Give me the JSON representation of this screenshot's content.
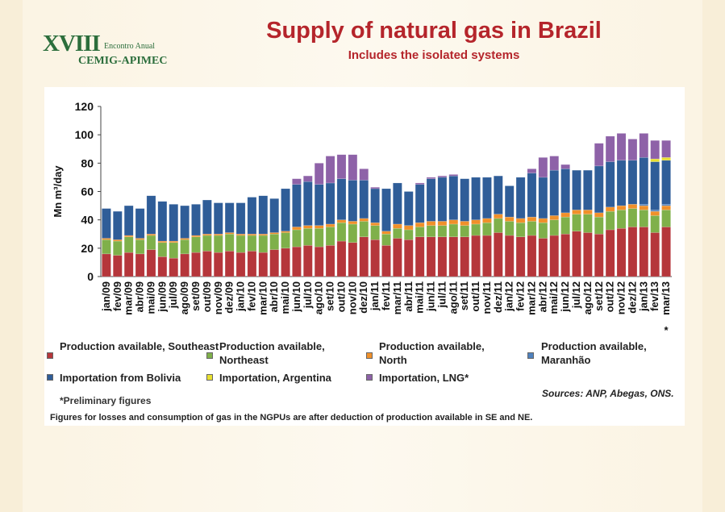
{
  "header": {
    "logo_numeral": "XVIII",
    "logo_event": "Encontro Anual",
    "logo_org": "CEMIG-APIMEC",
    "title": "Supply of natural gas in Brazil",
    "subtitle": "Includes the isolated systems"
  },
  "chart_data": {
    "type": "bar",
    "stacked": true,
    "ylabel": "Mn m³/day",
    "ylim": [
      0,
      120
    ],
    "yticks": [
      "0",
      "20",
      "40",
      "60",
      "80",
      "100",
      "120"
    ],
    "categories": [
      "jan/09",
      "fev/09",
      "mar/09",
      "abr/09",
      "mai/09",
      "jun/09",
      "jul/09",
      "ago/09",
      "set/09",
      "out/09",
      "nov/09",
      "dez/09",
      "jan/10",
      "fev/10",
      "mar/10",
      "abr/10",
      "mai/10",
      "jun/10",
      "jul/10",
      "ago/10",
      "set/10",
      "out/10",
      "nov/10",
      "dez/10",
      "jan/11",
      "fev/11",
      "mar/11",
      "abr/11",
      "mai/11",
      "jun/11",
      "jul/11",
      "ago/11",
      "set/11",
      "out/11",
      "nov/11",
      "dez/11",
      "jan/12",
      "fev/12",
      "mar/12",
      "abr/12",
      "mai/12",
      "jun/12",
      "jul/12",
      "ago/12",
      "set/12",
      "out/12",
      "nov/12",
      "dez/12",
      "jan/13",
      "fev/13",
      "mar/13"
    ],
    "marked_category_note": "*",
    "series": [
      {
        "name": "Production available, Southeast",
        "color": "#b5363b",
        "values": [
          16,
          15,
          17,
          16,
          19,
          14,
          13,
          16,
          17,
          18,
          17,
          18,
          17,
          18,
          17,
          19,
          20,
          21,
          22,
          21,
          22,
          25,
          24,
          28,
          26,
          22,
          27,
          26,
          28,
          28,
          28,
          28,
          28,
          29,
          29,
          31,
          29,
          28,
          29,
          27,
          29,
          30,
          32,
          31,
          30,
          33,
          34,
          35,
          35,
          31,
          35
        ]
      },
      {
        "name": "Production available, Northeast",
        "color": "#7fb04a",
        "values": [
          10,
          10,
          11,
          10,
          10,
          10,
          11,
          10,
          11,
          11,
          12,
          12,
          12,
          11,
          12,
          11,
          11,
          12,
          12,
          13,
          13,
          13,
          13,
          11,
          10,
          8,
          7,
          7,
          7,
          8,
          8,
          9,
          8,
          8,
          9,
          10,
          10,
          10,
          10,
          11,
          11,
          12,
          12,
          13,
          12,
          13,
          13,
          13,
          12,
          12,
          12
        ]
      },
      {
        "name": "Production available, North",
        "color": "#f0902a",
        "values": [
          1,
          1,
          1,
          1,
          1,
          1,
          1,
          1,
          1,
          1,
          1,
          1,
          1,
          1,
          1,
          1,
          1,
          2,
          2,
          2,
          2,
          2,
          2,
          2,
          2,
          2,
          3,
          3,
          3,
          3,
          3,
          3,
          3,
          3,
          3,
          3,
          3,
          3,
          3,
          3,
          3,
          3,
          3,
          3,
          3,
          3,
          3,
          3,
          3,
          3,
          3
        ]
      },
      {
        "name": "Production available, Maranhão",
        "color": "#4f81bd",
        "values": [
          0,
          0,
          0,
          0,
          0,
          0,
          0,
          0,
          0,
          0,
          0,
          0,
          0,
          0,
          0,
          0,
          0,
          0,
          0,
          0,
          0,
          0,
          0,
          0,
          0,
          0,
          0,
          0,
          0,
          0,
          0,
          0,
          0,
          0,
          0,
          0,
          0,
          0,
          0,
          0,
          0,
          0,
          0,
          0,
          0,
          0,
          0,
          0,
          1,
          1,
          1
        ]
      },
      {
        "name": "Importation from Bolivia",
        "color": "#2f5d98",
        "values": [
          21,
          20,
          21,
          21,
          27,
          28,
          26,
          23,
          22,
          24,
          22,
          21,
          22,
          26,
          27,
          24,
          30,
          30,
          31,
          29,
          29,
          29,
          29,
          27,
          24,
          30,
          29,
          24,
          27,
          30,
          31,
          31,
          30,
          30,
          29,
          27,
          22,
          29,
          31,
          29,
          32,
          31,
          28,
          28,
          33,
          32,
          32,
          31,
          33,
          34,
          31
        ]
      },
      {
        "name": "Importation, Argentina",
        "color": "#e8e030",
        "values": [
          0,
          0,
          0,
          0,
          0,
          0,
          0,
          0,
          0,
          0,
          0,
          0,
          0,
          0,
          0,
          0,
          0,
          0,
          0,
          0,
          0,
          0,
          0,
          0,
          0,
          0,
          0,
          0,
          0,
          0,
          0,
          0,
          0,
          0,
          0,
          0,
          0,
          0,
          0,
          0,
          0,
          0,
          0,
          0,
          0,
          0,
          0,
          0,
          0,
          2,
          2
        ]
      },
      {
        "name": "Importation, LNG*",
        "color": "#8e62a8",
        "values": [
          0,
          0,
          0,
          0,
          0,
          0,
          0,
          0,
          0,
          0,
          0,
          0,
          0,
          0,
          0,
          0,
          0,
          4,
          4,
          15,
          19,
          17,
          18,
          8,
          1,
          0,
          0,
          0,
          1,
          1,
          1,
          1,
          0,
          0,
          0,
          0,
          0,
          0,
          3,
          14,
          10,
          3,
          0,
          0,
          16,
          18,
          19,
          15,
          17,
          13,
          12
        ]
      }
    ]
  },
  "legend_items": [
    {
      "label": "Production available, Southeast",
      "color": "#b5363b"
    },
    {
      "label": "Production available, Northeast",
      "color": "#7fb04a"
    },
    {
      "label": "Production available, North",
      "color": "#f0902a"
    },
    {
      "label": "Production available, Maranhão",
      "color": "#4f81bd"
    },
    {
      "label": "Importation from Bolivia",
      "color": "#2f5d98"
    },
    {
      "label": "Importation, Argentina",
      "color": "#e8e030"
    },
    {
      "label": "Importation, LNG*",
      "color": "#8e62a8"
    }
  ],
  "notes": {
    "preliminary": "*Preliminary figures",
    "sources": "Sources: ANP, Abegas, ONS.",
    "footer": "Figures for losses and consumption of gas in the NGPUs are after deduction of production available in SE and NE."
  }
}
